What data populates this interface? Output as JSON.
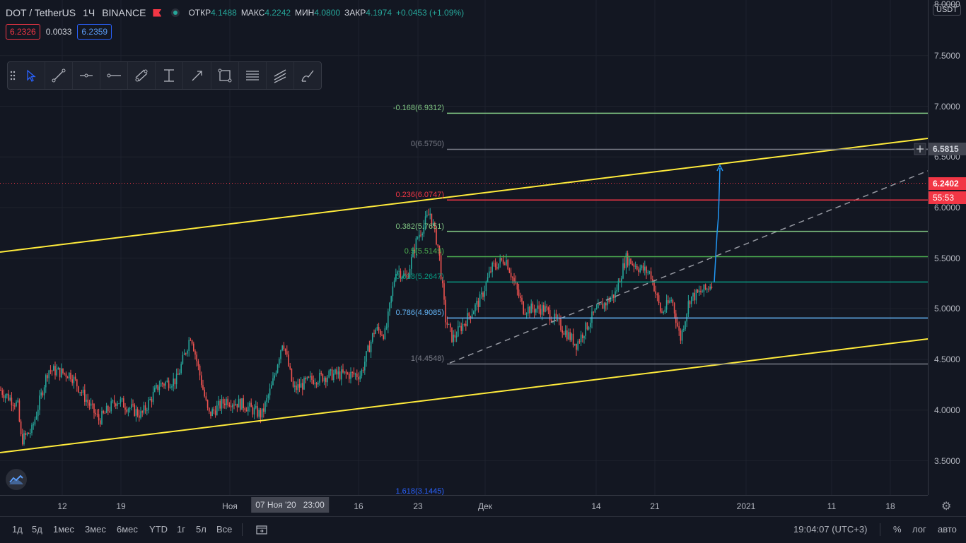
{
  "legend": {
    "symbol": "DOT / TetherUS",
    "interval": "1Ч",
    "exchange": "BINANCE",
    "open_label": "ОТКР",
    "open_value": "4.1488",
    "high_label": "МАКС",
    "high_value": "4.2242",
    "low_label": "МИН",
    "low_value": "4.0800",
    "close_label": "ЗАКР",
    "close_value": "4.1974",
    "change": "+0.0453 (+1.09%)"
  },
  "price_boxes": {
    "bid": "6.2326",
    "spread": "0.0033",
    "ask": "6.2359"
  },
  "colors": {
    "background": "#131722",
    "up": "#26a69a",
    "down": "#ef5350",
    "channel": "#ffeb3b",
    "accent": "#2962ff"
  },
  "toolbar": {
    "tools": [
      "drag-handle-icon",
      "cursor-icon",
      "trend-line-icon",
      "horizontal-ray-icon",
      "horizontal-line-icon",
      "parallel-channel-icon",
      "date-price-range-icon",
      "arrow-icon",
      "rectangle-icon",
      "fib-levels-icon",
      "pitchfork-icon",
      "brush-icon"
    ]
  },
  "price_axis": {
    "currency_button": "USDT",
    "ticks": [
      "3.5000",
      "4.0000",
      "4.5000",
      "5.0000",
      "5.5000",
      "6.0000",
      "6.5000",
      "7.0000",
      "7.5000",
      "8.0000"
    ],
    "tag_crosshair": "6.5815",
    "tag_last": "6.2402",
    "tag_countdown": "55:53"
  },
  "fib_levels": [
    {
      "label": "-0.168(6.9312)",
      "price": 6.9312,
      "color": "#81c784"
    },
    {
      "label": "0(6.5750)",
      "price": 6.575,
      "color": "#787b86"
    },
    {
      "label": "0.236(6.0747)",
      "price": 6.0747,
      "color": "#f23645"
    },
    {
      "label": "0.382(5.7651)",
      "price": 5.7651,
      "color": "#81c784"
    },
    {
      "label": "0.5(5.5149)",
      "price": 5.5149,
      "color": "#4caf50"
    },
    {
      "label": "0.618(5.2647)",
      "price": 5.2647,
      "color": "#089981"
    },
    {
      "label": "0.786(4.9085)",
      "price": 4.9085,
      "color": "#64b5f6"
    },
    {
      "label": "1(4.4548)",
      "price": 4.4548,
      "color": "#787b86"
    },
    {
      "label": "1.618(3.1445)",
      "price": 3.1445,
      "color": "#2962ff"
    }
  ],
  "time_axis": {
    "ticks": [
      "12",
      "19",
      "Ноя",
      "16",
      "23",
      "Дек",
      "14",
      "21",
      "2021",
      "11",
      "18"
    ],
    "crosshair_date": "07 Ноя '20",
    "crosshair_time": "23:00"
  },
  "bottom_bar": {
    "ranges": [
      "1д",
      "5д",
      "1мес",
      "3мес",
      "6мес",
      "YTD",
      "1г",
      "5л",
      "Все"
    ],
    "clock": "19:04:07 (UTC+3)",
    "percent": "%",
    "log": "лог",
    "auto": "авто"
  }
}
